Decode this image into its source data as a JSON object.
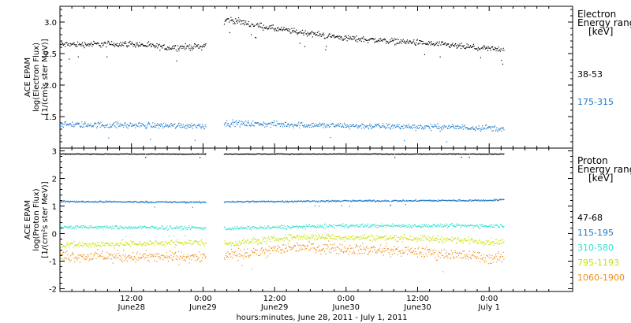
{
  "chart_data": {
    "type": "scatter",
    "xlabel": "hours:minutes, June 28, 2011 - July  1, 2011",
    "x_range_hours": [
      0,
      86
    ],
    "gap_hours": [
      24.5,
      27.5
    ],
    "x_ticks": [
      {
        "hour": 12,
        "time": "12:00",
        "date": "June28"
      },
      {
        "hour": 24,
        "time": "0:00",
        "date": "June29"
      },
      {
        "hour": 36,
        "time": "12:00",
        "date": "June29"
      },
      {
        "hour": 48,
        "time": "0:00",
        "date": "June30"
      },
      {
        "hour": 60,
        "time": "12:00",
        "date": "June30"
      },
      {
        "hour": 72,
        "time": "0:00",
        "date": "July 1"
      }
    ],
    "panels": [
      {
        "ylabel": [
          "ACE EPAM",
          "log(Electron Flux)",
          "[1/(cm²s ster MeV)]"
        ],
        "ylim": [
          1.0,
          3.25
        ],
        "yticks": [
          1.5,
          2.0,
          2.5,
          3.0
        ],
        "ytick_labels": [
          "1.5",
          "2.0",
          "2.5",
          "3.0"
        ],
        "legend_title": [
          "Electron",
          "Energy range",
          "[keV]"
        ],
        "series": [
          {
            "name": "38-53",
            "color": "#000000",
            "values": [
              [
                0,
                2.65
              ],
              [
                12,
                2.66
              ],
              [
                18,
                2.6
              ],
              [
                24,
                2.62
              ],
              [
                28,
                3.05
              ],
              [
                36,
                2.9
              ],
              [
                48,
                2.75
              ],
              [
                60,
                2.68
              ],
              [
                72,
                2.58
              ],
              [
                74.5,
                2.58
              ]
            ]
          },
          {
            "name": "175-315",
            "color": "#1a78c8",
            "values": [
              [
                0,
                1.38
              ],
              [
                12,
                1.37
              ],
              [
                24,
                1.36
              ],
              [
                28,
                1.4
              ],
              [
                48,
                1.36
              ],
              [
                72,
                1.33
              ],
              [
                74.5,
                1.3
              ]
            ]
          }
        ]
      },
      {
        "ylabel": [
          "ACE EPAM",
          "log(Proton Flux)",
          "[1/(cm²s ster MeV)]"
        ],
        "ylim": [
          -2.1,
          3.1
        ],
        "yticks": [
          -2,
          -1,
          0,
          1,
          2,
          3
        ],
        "ytick_labels": [
          "-2",
          "-1",
          "0",
          "1",
          "2",
          "3"
        ],
        "legend_title": [
          "Proton",
          "Energy range",
          "[keV]"
        ],
        "series": [
          {
            "name": "47-68",
            "color": "#000000",
            "values": [
              [
                0,
                2.9
              ],
              [
                74.5,
                2.9
              ]
            ]
          },
          {
            "name": "115-195",
            "color": "#1a78c8",
            "values": [
              [
                0,
                1.18
              ],
              [
                24,
                1.15
              ],
              [
                28,
                1.17
              ],
              [
                48,
                1.2
              ],
              [
                72,
                1.22
              ],
              [
                74.5,
                1.25
              ]
            ]
          },
          {
            "name": "310-580",
            "color": "#2ee0d0",
            "values": [
              [
                0,
                0.25
              ],
              [
                24,
                0.22
              ],
              [
                28,
                0.2
              ],
              [
                48,
                0.3
              ],
              [
                60,
                0.3
              ],
              [
                74.5,
                0.3
              ]
            ]
          },
          {
            "name": "795-1193",
            "color": "#c8e000",
            "values": [
              [
                0,
                -0.4
              ],
              [
                24,
                -0.3
              ],
              [
                28,
                -0.35
              ],
              [
                40,
                -0.1
              ],
              [
                60,
                -0.15
              ],
              [
                74.5,
                -0.3
              ]
            ]
          },
          {
            "name": "1060-1900",
            "color": "#f08c14",
            "values": [
              [
                0,
                -0.8
              ],
              [
                24,
                -0.85
              ],
              [
                28,
                -0.8
              ],
              [
                40,
                -0.45
              ],
              [
                60,
                -0.65
              ],
              [
                74.5,
                -0.9
              ]
            ]
          }
        ]
      }
    ]
  }
}
